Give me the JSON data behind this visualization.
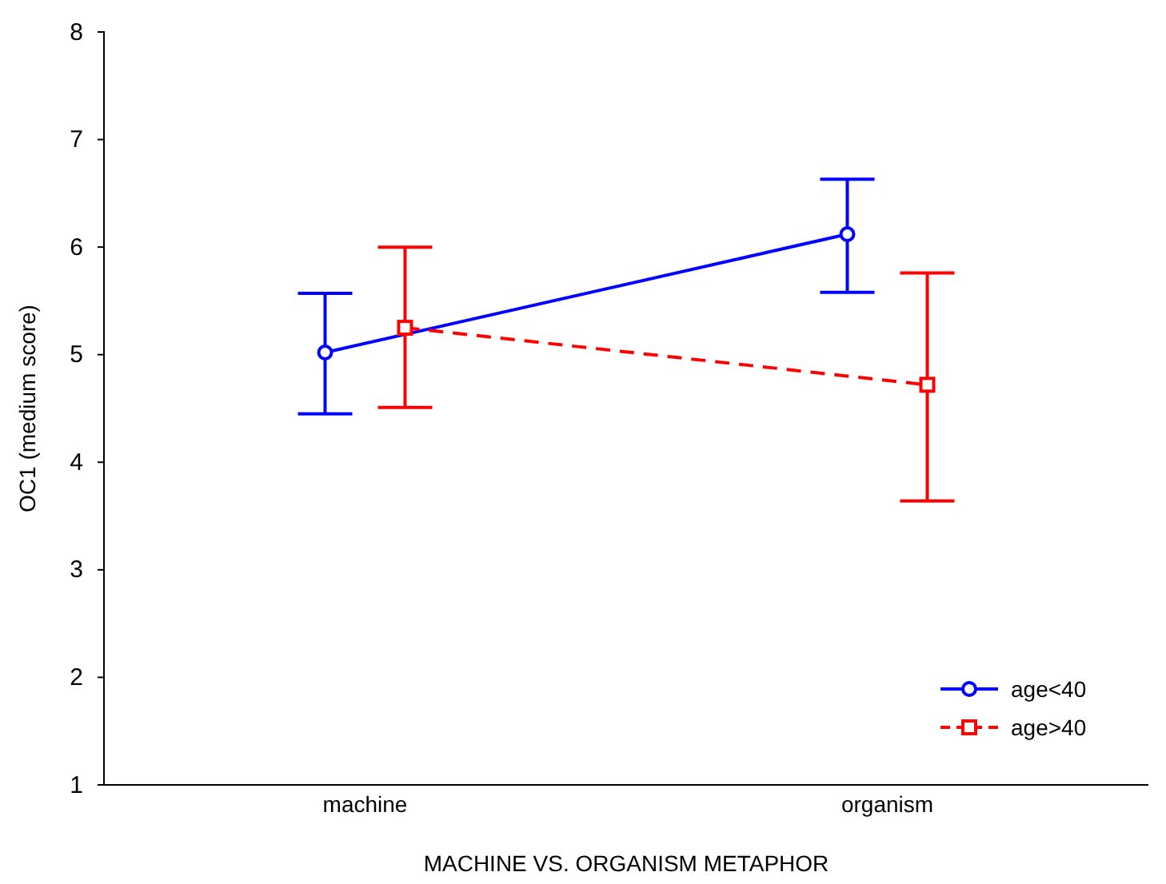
{
  "chart_data": {
    "type": "line",
    "xlabel": "MACHINE VS. ORGANISM METAPHOR",
    "ylabel": "OC1 (medium score)",
    "categories": [
      "machine",
      "organism"
    ],
    "series": [
      {
        "name": "age<40",
        "color": "#0000ff",
        "values": [
          5.02,
          6.12
        ],
        "errors": [
          [
            4.45,
            5.57
          ],
          [
            5.58,
            6.63
          ]
        ],
        "marker": "circle",
        "line_style": "solid"
      },
      {
        "name": "age>40",
        "color": "#ff0000",
        "values": [
          5.25,
          4.72
        ],
        "errors": [
          [
            4.51,
            6.0
          ],
          [
            3.64,
            5.76
          ]
        ],
        "marker": "square",
        "line_style": "dashed"
      }
    ],
    "ylim": [
      1,
      8
    ],
    "yticks": [
      1,
      2,
      3,
      4,
      5,
      6,
      7,
      8
    ],
    "grid": false,
    "legend": "bottom right"
  }
}
